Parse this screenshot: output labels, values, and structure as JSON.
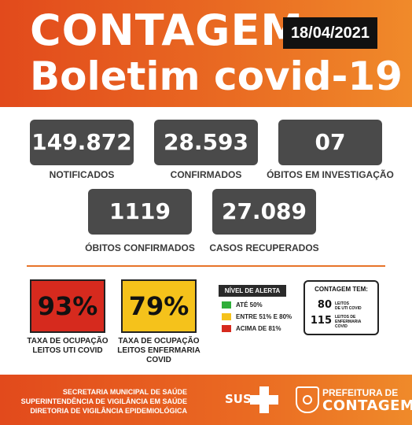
{
  "header": {
    "title_line1": "CONTAGEM",
    "date": "18/04/2021",
    "title_line2": "Boletim covid-19"
  },
  "stats": [
    {
      "value": "149.872",
      "label": "NOTIFICADOS"
    },
    {
      "value": "28.593",
      "label": "CONFIRMADOS"
    },
    {
      "value": "07",
      "label": "ÓBITOS EM INVESTIGAÇÃO"
    },
    {
      "value": "1119",
      "label": "ÓBITOS CONFIRMADOS"
    },
    {
      "value": "27.089",
      "label": "CASOS RECUPERADOS"
    }
  ],
  "occupancy": [
    {
      "value": "93%",
      "label_line1": "TAXA DE OCUPAÇÃO",
      "label_line2": "LEITOS UTI COVID",
      "label_line3": "",
      "color": "#d62a1e"
    },
    {
      "value": "79%",
      "label_line1": "TAXA DE OCUPAÇÃO",
      "label_line2": "LEITOS ENFERMARIA",
      "label_line3": "COVID",
      "color": "#f5c21b"
    }
  ],
  "alert": {
    "title": "NÍVEL DE ALERTA",
    "levels": [
      {
        "label": "ATÉ 50%",
        "color": "#2fae3a"
      },
      {
        "label": "ENTRE 51% E 80%",
        "color": "#f5c21b"
      },
      {
        "label": "ACIMA DE 81%",
        "color": "#d62a1e"
      }
    ]
  },
  "contagem_tem": {
    "title": "CONTAGEM TEM:",
    "items": [
      {
        "number": "80",
        "unit_line1": "LEITOS",
        "unit_line2": "DE UTI COVID",
        "unit_line3": ""
      },
      {
        "number": "115",
        "unit_line1": "LEITOS DE",
        "unit_line2": "ENFERMARIA",
        "unit_line3": "COVID"
      }
    ]
  },
  "footer": {
    "line1": "SECRETARIA MUNICIPAL DE SAÚDE",
    "line2": "SUPERINTENDÊNCIA DE VIGILÂNCIA EM SAÚDE",
    "line3": "DIRETORIA DE VIGILÂNCIA EPIDEMIOLÓGICA",
    "sus": "SUS",
    "prefeitura_small": "PREFEITURA DE",
    "prefeitura_big": "CONTAGEM"
  },
  "colors": {
    "orange": "#e96a22",
    "stat_box": "#4a4a4a"
  }
}
